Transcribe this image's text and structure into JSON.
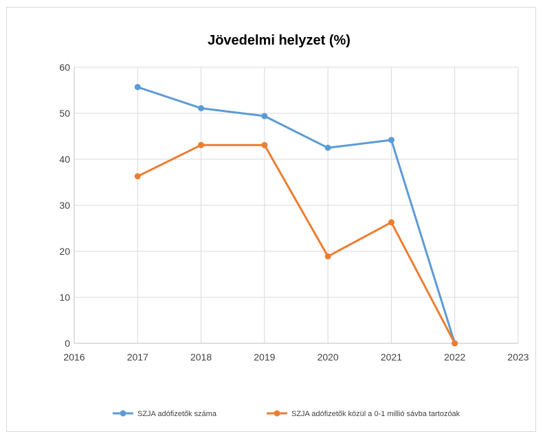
{
  "chart_data": {
    "type": "line",
    "title": "Jövedelmi helyzet (%)",
    "xlabel": "",
    "ylabel": "",
    "xlim": [
      2016,
      2023
    ],
    "ylim": [
      0,
      60
    ],
    "x_ticks": [
      "2016",
      "2017",
      "2018",
      "2019",
      "2020",
      "2021",
      "2022",
      "2023"
    ],
    "y_ticks": [
      "0",
      "10",
      "20",
      "30",
      "40",
      "50",
      "60"
    ],
    "grid": true,
    "legend_position": "bottom",
    "series": [
      {
        "name": "SZJA adófizetők száma",
        "color": "#5b9bd5",
        "x": [
          2017,
          2018,
          2019,
          2020,
          2021,
          2022
        ],
        "values": [
          55.7,
          51.1,
          49.4,
          42.5,
          44.2,
          0
        ]
      },
      {
        "name": "SZJA adófizetők közül a 0-1 millió sávba tartozóak",
        "color": "#ed7d31",
        "x": [
          2017,
          2018,
          2019,
          2020,
          2021,
          2022
        ],
        "values": [
          36.3,
          43.1,
          43.1,
          18.9,
          26.3,
          0
        ]
      }
    ]
  }
}
